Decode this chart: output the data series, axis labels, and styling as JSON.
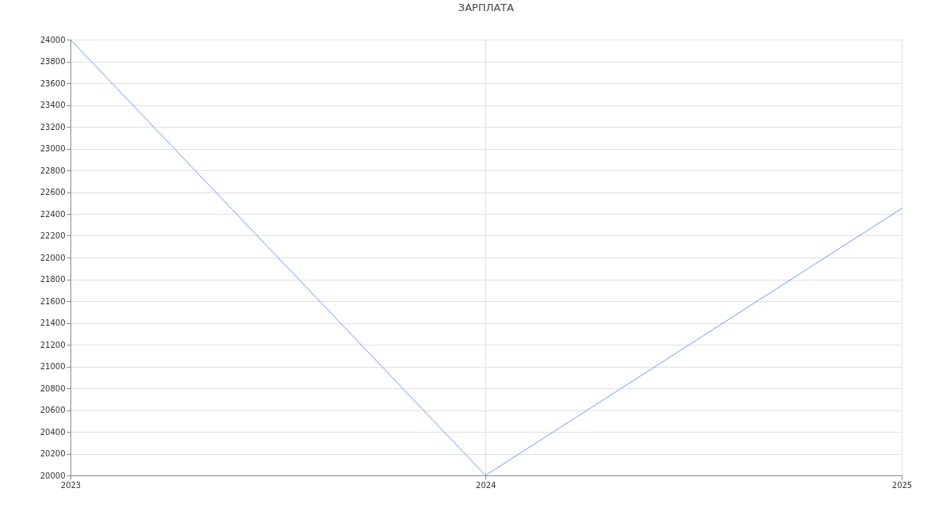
{
  "chart_data": {
    "type": "line",
    "title": "ЗАРПЛАТА",
    "x": [
      "2023",
      "2024",
      "2025"
    ],
    "series": [
      {
        "color": "#6b9cf0",
        "values": [
          24000,
          20000,
          22450
        ]
      }
    ],
    "xlim": [
      "2023",
      "2025"
    ],
    "xticks": [
      "2023",
      "2024",
      "2025"
    ],
    "ylim": [
      20000,
      24000
    ],
    "yticks": [
      20000,
      20200,
      20400,
      20600,
      20800,
      21000,
      21200,
      21400,
      21600,
      21800,
      22000,
      22200,
      22400,
      22600,
      22800,
      23000,
      23200,
      23400,
      23600,
      23800,
      24000
    ],
    "grid": true,
    "marker": "none",
    "line_style": "solid"
  }
}
